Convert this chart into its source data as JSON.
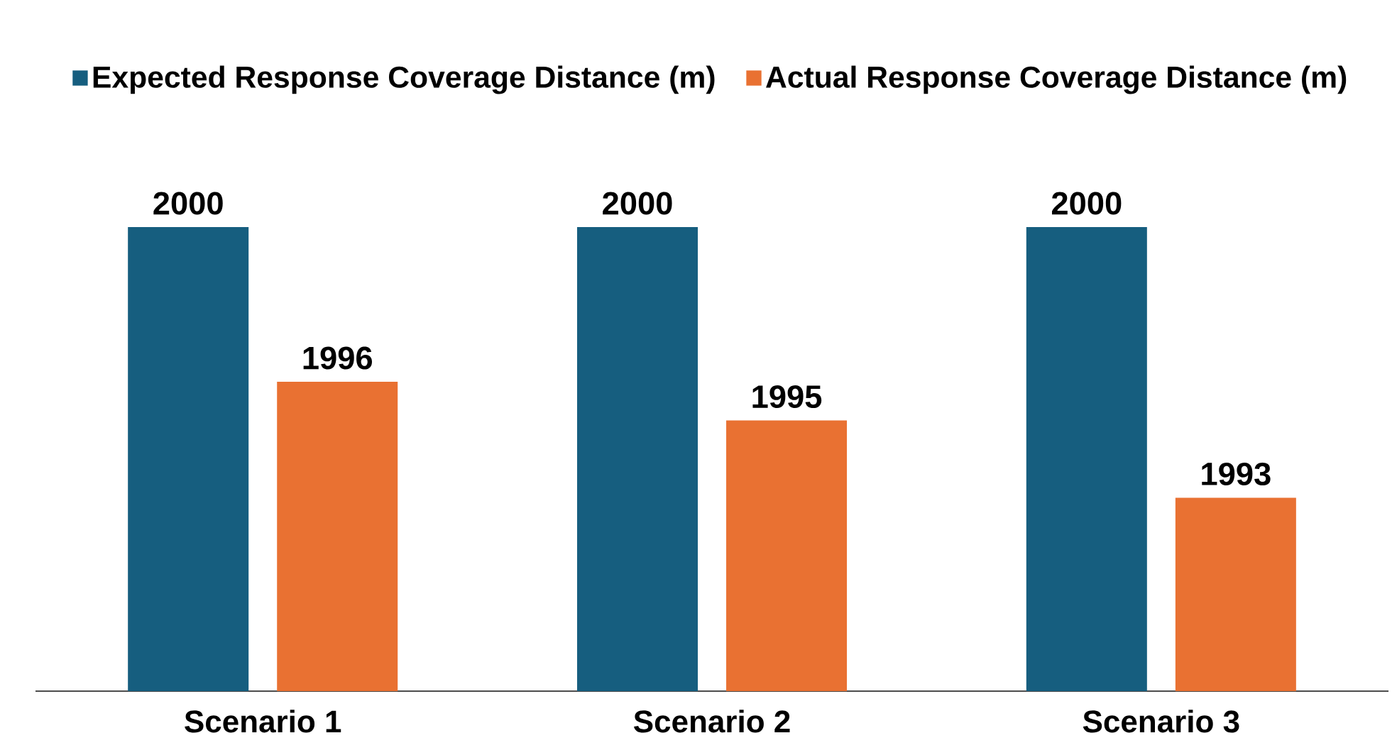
{
  "chart_data": {
    "type": "bar",
    "categories": [
      "Scenario 1",
      "Scenario 2",
      "Scenario 3"
    ],
    "series": [
      {
        "name": "Expected Response Coverage Distance (m)",
        "color": "#165e7f",
        "values": [
          2000,
          2000,
          2000
        ]
      },
      {
        "name": "Actual Response Coverage Distance (m)",
        "color": "#e97132",
        "values": [
          1996,
          1995,
          1993
        ]
      }
    ],
    "ylim": [
      1988,
      2000
    ],
    "data_labels": true,
    "legend": "top"
  }
}
